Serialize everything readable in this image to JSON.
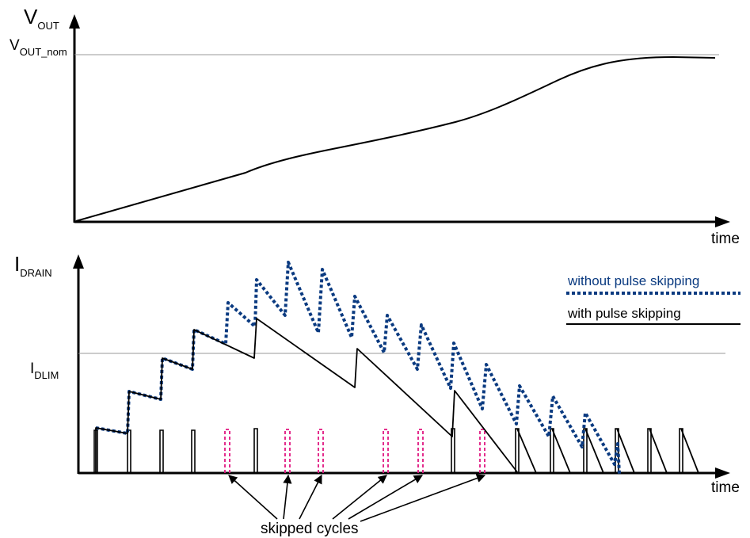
{
  "top_plot": {
    "y_label_main": "V",
    "y_label_sub": "OUT",
    "ref_label_main": "V",
    "ref_label_sub": "OUT_nom",
    "x_label": "time"
  },
  "bottom_plot": {
    "y_label_main": "I",
    "y_label_sub": "DRAIN",
    "ref_label_main": "I",
    "ref_label_sub": "DLIM",
    "x_label": "time",
    "annotation": "skipped cycles"
  },
  "legend": {
    "without": "without pulse skipping",
    "with": "with pulse skipping"
  },
  "colors": {
    "without_pulse_skipping": "#0a3a80",
    "skipped_cycle_marker": "#e0157f",
    "with_pulse_skipping": "#000000",
    "reference_line": "#999999"
  }
}
